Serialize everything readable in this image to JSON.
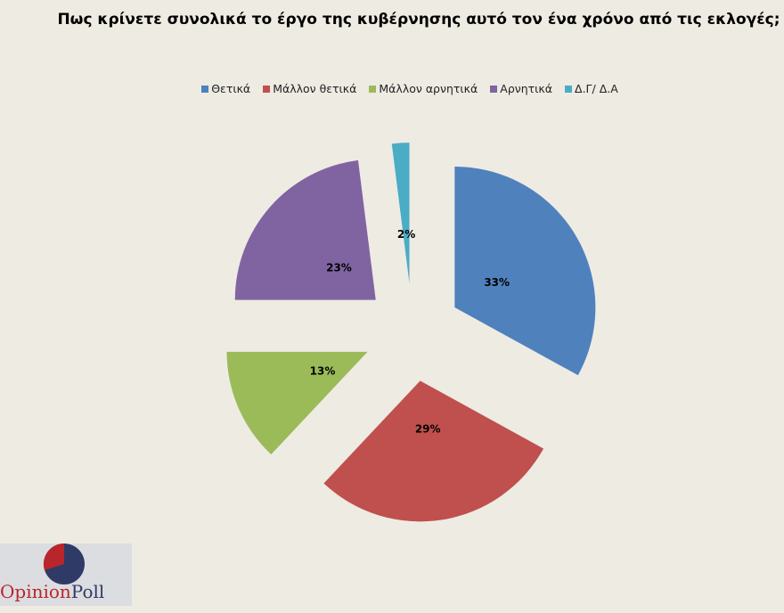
{
  "chart_data": {
    "type": "pie",
    "title": "Πως κρίνετε συνολικά το έργο της κυβέρνησης  αυτό τον ένα χρόνο από τις εκλογές;",
    "categories": [
      "Θετικά",
      "Μάλλον θετικά",
      "Μάλλον αρνητικά",
      "Αρνητικά",
      "Δ.Γ/ Δ.Α"
    ],
    "values": [
      33,
      29,
      13,
      23,
      2
    ],
    "labels": [
      "33%",
      "29%",
      "13%",
      "23%",
      "2%"
    ],
    "colors": [
      "#4f81bd",
      "#c0504d",
      "#9bbb59",
      "#8064a2",
      "#4bacc6"
    ],
    "exploded": true,
    "legend_position": "top"
  },
  "logo": {
    "text_a": "Opinion",
    "text_b": "Poll",
    "colors": [
      "#b8262b",
      "#2f3a66"
    ]
  }
}
